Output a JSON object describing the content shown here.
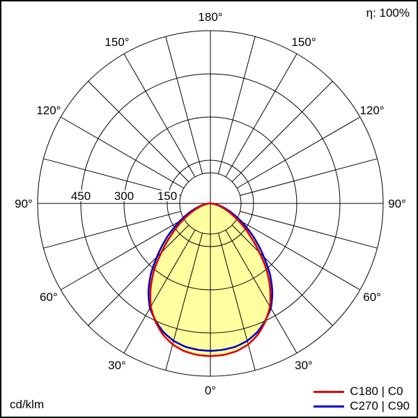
{
  "header": {
    "efficiency": "η: 100%"
  },
  "footer": {
    "units": "cd/klm"
  },
  "legend": [
    {
      "label": "C180 | C0",
      "color": "#dd0000"
    },
    {
      "label": "C270 | C90",
      "color": "#0000cd"
    }
  ],
  "chart_data": {
    "type": "polar",
    "subtype": "luminous-intensity-distribution",
    "units": "cd/klm",
    "efficiency_percent": 100,
    "fill_color": "#ffffa0",
    "grid_step_deg": 15,
    "symmetric_about_vertical": true,
    "radial_ticks": [
      150,
      300,
      450,
      600
    ],
    "radial_tick_labels": [
      "150",
      "300",
      "450"
    ],
    "angle_tick_labels": [
      {
        "gamma": 0,
        "label": "0°"
      },
      {
        "gamma": 30,
        "label": "30°"
      },
      {
        "gamma": 60,
        "label": "60°"
      },
      {
        "gamma": 90,
        "label": "90°"
      },
      {
        "gamma": 120,
        "label": "120°"
      },
      {
        "gamma": 150,
        "label": "150°"
      },
      {
        "gamma": 180,
        "label": "180°"
      }
    ],
    "gamma_deg": [
      0,
      5,
      10,
      15,
      20,
      25,
      30,
      35,
      40,
      45,
      50,
      55,
      60,
      65,
      70,
      75,
      80,
      85,
      90
    ],
    "series": [
      {
        "name": "C180 | C0",
        "color": "#dd0000",
        "values": [
          530,
          528,
          521,
          507,
          484,
          452,
          414,
          362,
          305,
          240,
          185,
          140,
          102,
          72,
          48,
          30,
          16,
          7,
          2
        ]
      },
      {
        "name": "C270 | C90",
        "color": "#0000cd",
        "values": [
          512,
          510,
          505,
          494,
          476,
          450,
          420,
          375,
          322,
          262,
          210,
          163,
          122,
          88,
          60,
          38,
          20,
          9,
          2
        ]
      }
    ]
  }
}
